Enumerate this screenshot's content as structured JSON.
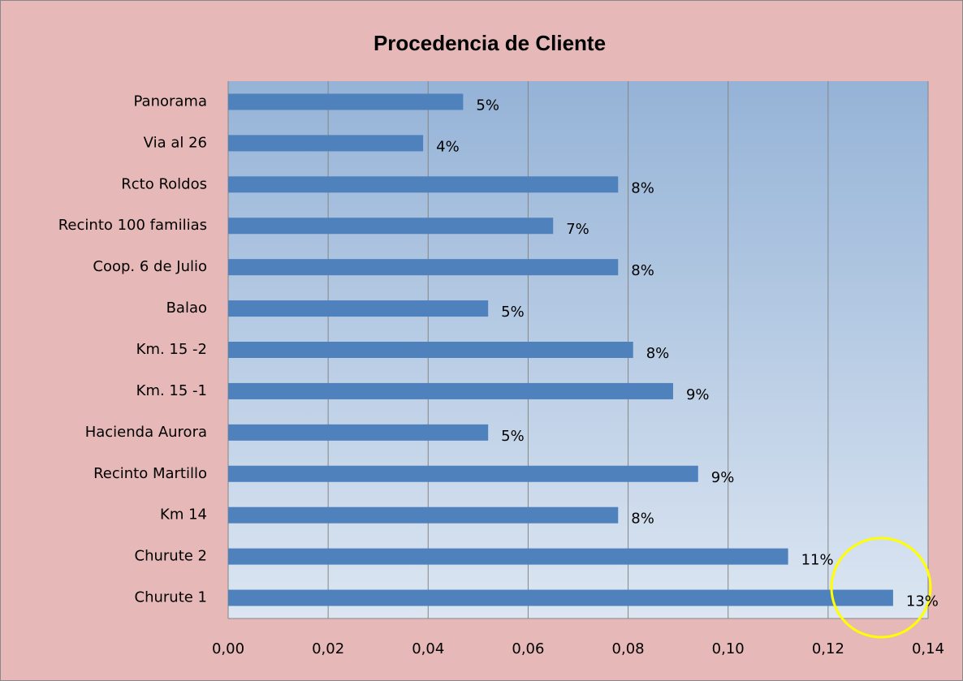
{
  "chart_data": {
    "type": "bar",
    "orientation": "horizontal",
    "title": "Procedencia de Cliente",
    "categories": [
      "Panorama",
      "Via al 26",
      "Rcto Roldos",
      "Recinto 100 familias",
      "Coop. 6 de Julio",
      "Balao",
      "Km. 15 -2",
      "Km. 15 -1",
      "Hacienda Aurora",
      "Recinto Martillo",
      "Km 14",
      "Churute 2",
      "Churute 1"
    ],
    "values": [
      0.047,
      0.039,
      0.078,
      0.065,
      0.078,
      0.052,
      0.081,
      0.089,
      0.052,
      0.094,
      0.078,
      0.112,
      0.133
    ],
    "value_labels": [
      "5%",
      "4%",
      "8%",
      "7%",
      "8%",
      "5%",
      "8%",
      "9%",
      "5%",
      "9%",
      "8%",
      "11%",
      "13%"
    ],
    "color": "#4f81bd",
    "xlim": [
      0,
      0.14
    ],
    "xticks": [
      {
        "value": 0,
        "label": "0,00"
      },
      {
        "value": 0.02,
        "label": "0,02"
      },
      {
        "value": 0.04,
        "label": "0,04"
      },
      {
        "value": 0.06,
        "label": "0,06"
      },
      {
        "value": 0.08,
        "label": "0,08"
      },
      {
        "value": 0.1,
        "label": "0,10"
      },
      {
        "value": 0.12,
        "label": "0,12"
      },
      {
        "value": 0.14,
        "label": "0,14"
      }
    ],
    "grid": true
  }
}
